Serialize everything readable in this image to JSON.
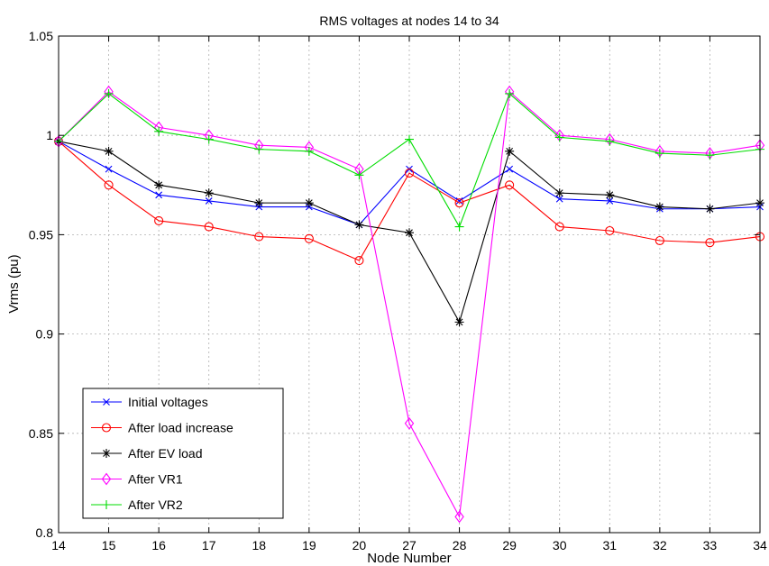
{
  "chart_data": {
    "type": "line",
    "title": "RMS voltages at nodes 14 to 34",
    "xlabel": "Node Number",
    "ylabel": "Vrms (pu)",
    "categories": [
      "14",
      "15",
      "16",
      "17",
      "18",
      "19",
      "20",
      "27",
      "28",
      "29",
      "30",
      "31",
      "32",
      "33",
      "34"
    ],
    "ylim": [
      0.8,
      1.05
    ],
    "yticks": [
      "0.8",
      "0.85",
      "0.9",
      "0.95",
      "1",
      "1.05"
    ],
    "grid": true,
    "legend_position": "bottom-left",
    "series": [
      {
        "name": "Initial voltages",
        "color": "#0000ff",
        "marker": "x",
        "values": [
          0.997,
          0.983,
          0.97,
          0.967,
          0.964,
          0.964,
          0.955,
          0.983,
          0.967,
          0.983,
          0.968,
          0.967,
          0.963,
          0.963,
          0.964
        ]
      },
      {
        "name": "After load increase",
        "color": "#ff0000",
        "marker": "circle",
        "values": [
          0.997,
          0.975,
          0.957,
          0.954,
          0.949,
          0.948,
          0.937,
          0.981,
          0.966,
          0.975,
          0.954,
          0.952,
          0.947,
          0.946,
          0.949
        ]
      },
      {
        "name": "After EV load",
        "color": "#000000",
        "marker": "star",
        "values": [
          0.997,
          0.992,
          0.975,
          0.971,
          0.966,
          0.966,
          0.955,
          0.951,
          0.906,
          0.992,
          0.971,
          0.97,
          0.964,
          0.963,
          0.966
        ]
      },
      {
        "name": "After VR1",
        "color": "#ff00ff",
        "marker": "diamond",
        "values": [
          0.997,
          1.022,
          1.004,
          1.0,
          0.995,
          0.994,
          0.983,
          0.855,
          0.808,
          1.022,
          1.0,
          0.998,
          0.992,
          0.991,
          0.995
        ]
      },
      {
        "name": "After VR2",
        "color": "#00dd00",
        "marker": "plus",
        "values": [
          0.997,
          1.021,
          1.002,
          0.998,
          0.993,
          0.992,
          0.98,
          0.998,
          0.954,
          1.021,
          0.999,
          0.997,
          0.991,
          0.99,
          0.993
        ]
      }
    ]
  }
}
